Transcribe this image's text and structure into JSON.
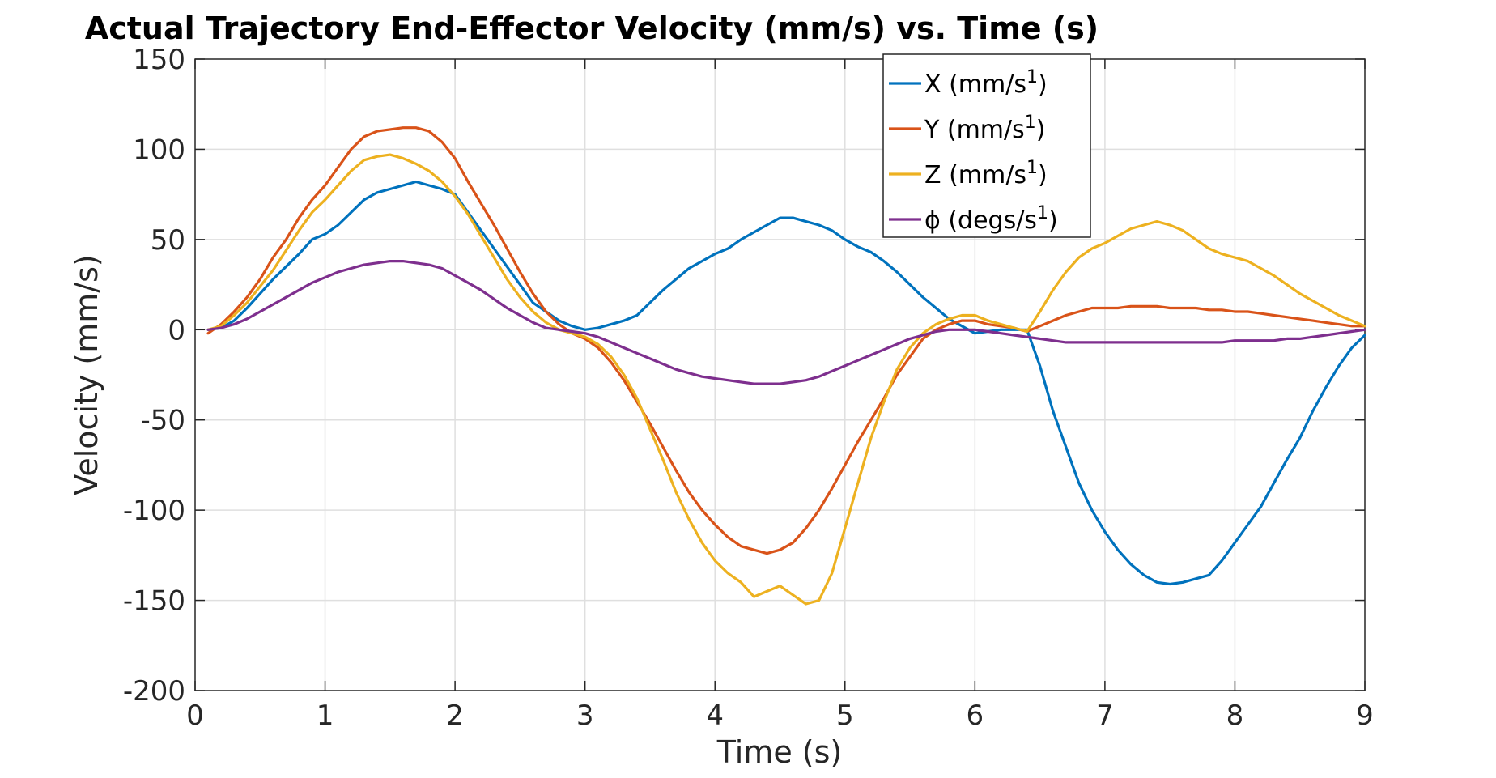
{
  "chart_data": {
    "type": "line",
    "title": "Actual Trajectory End-Effector Velocity (mm/s) vs. Time (s)",
    "xlabel": "Time (s)",
    "ylabel": "Velocity (mm/s)",
    "xlim": [
      0,
      9
    ],
    "ylim": [
      -200,
      150
    ],
    "xticks": [
      0,
      1,
      2,
      3,
      4,
      5,
      6,
      7,
      8,
      9
    ],
    "yticks": [
      -200,
      -150,
      -100,
      -50,
      0,
      50,
      100,
      150
    ],
    "xtick_labels": [
      "0",
      "1",
      "2",
      "3",
      "4",
      "5",
      "6",
      "7",
      "8",
      "9"
    ],
    "ytick_labels": [
      "-200",
      "-150",
      "-100",
      "-50",
      "0",
      "50",
      "100",
      "150"
    ],
    "grid": true,
    "legend_position": "top-center",
    "x": [
      0.1,
      0.2,
      0.3,
      0.4,
      0.5,
      0.6,
      0.7,
      0.8,
      0.9,
      1.0,
      1.1,
      1.2,
      1.3,
      1.4,
      1.5,
      1.6,
      1.7,
      1.8,
      1.9,
      2.0,
      2.1,
      2.2,
      2.3,
      2.4,
      2.5,
      2.6,
      2.7,
      2.8,
      2.9,
      3.0,
      3.1,
      3.2,
      3.3,
      3.4,
      3.5,
      3.6,
      3.7,
      3.8,
      3.9,
      4.0,
      4.1,
      4.2,
      4.3,
      4.4,
      4.5,
      4.6,
      4.7,
      4.8,
      4.9,
      5.0,
      5.1,
      5.2,
      5.3,
      5.4,
      5.5,
      5.6,
      5.7,
      5.8,
      5.9,
      6.0,
      6.1,
      6.2,
      6.3,
      6.4,
      6.5,
      6.6,
      6.7,
      6.8,
      6.9,
      7.0,
      7.1,
      7.2,
      7.3,
      7.4,
      7.5,
      7.6,
      7.7,
      7.8,
      7.9,
      8.0,
      8.1,
      8.2,
      8.3,
      8.4,
      8.5,
      8.6,
      8.7,
      8.8,
      8.9,
      9.0
    ],
    "series": [
      {
        "name": "X (mm/s1)",
        "color": "#0072BD",
        "values": [
          0,
          1,
          5,
          12,
          20,
          28,
          35,
          42,
          50,
          53,
          58,
          65,
          72,
          76,
          78,
          80,
          82,
          80,
          78,
          75,
          65,
          55,
          45,
          35,
          25,
          15,
          10,
          5,
          2,
          0,
          1,
          3,
          5,
          8,
          15,
          22,
          28,
          34,
          38,
          42,
          45,
          50,
          54,
          58,
          62,
          62,
          60,
          58,
          55,
          50,
          46,
          43,
          38,
          32,
          25,
          18,
          12,
          6,
          2,
          -2,
          -1,
          0,
          0,
          0,
          -20,
          -45,
          -65,
          -85,
          -100,
          -112,
          -122,
          -130,
          -136,
          -140,
          -141,
          -140,
          -138,
          -136,
          -128,
          -118,
          -108,
          -98,
          -85,
          -72,
          -60,
          -45,
          -32,
          -20,
          -10,
          -3
        ]
      },
      {
        "name": "Y (mm/s1)",
        "color": "#D95319",
        "values": [
          -2,
          3,
          10,
          18,
          28,
          40,
          50,
          62,
          72,
          80,
          90,
          100,
          107,
          110,
          111,
          112,
          112,
          110,
          104,
          95,
          82,
          70,
          58,
          45,
          32,
          20,
          10,
          3,
          -2,
          -5,
          -10,
          -18,
          -28,
          -40,
          -52,
          -65,
          -78,
          -90,
          -100,
          -108,
          -115,
          -120,
          -122,
          -124,
          -122,
          -118,
          -110,
          -100,
          -88,
          -75,
          -62,
          -50,
          -38,
          -25,
          -15,
          -5,
          0,
          3,
          5,
          5,
          3,
          2,
          1,
          -1,
          2,
          5,
          8,
          10,
          12,
          12,
          12,
          13,
          13,
          13,
          12,
          12,
          12,
          11,
          11,
          10,
          10,
          9,
          8,
          7,
          6,
          5,
          4,
          3,
          2,
          2
        ]
      },
      {
        "name": "Z (mm/s1)",
        "color": "#EDB120",
        "values": [
          0,
          2,
          8,
          15,
          24,
          33,
          44,
          55,
          65,
          72,
          80,
          88,
          94,
          96,
          97,
          95,
          92,
          88,
          82,
          74,
          64,
          52,
          40,
          28,
          18,
          10,
          4,
          0,
          -2,
          -4,
          -8,
          -15,
          -25,
          -38,
          -55,
          -72,
          -90,
          -105,
          -118,
          -128,
          -135,
          -140,
          -148,
          -145,
          -142,
          -147,
          -152,
          -150,
          -135,
          -110,
          -85,
          -60,
          -40,
          -22,
          -10,
          -2,
          3,
          6,
          8,
          8,
          5,
          3,
          1,
          -1,
          10,
          22,
          32,
          40,
          45,
          48,
          52,
          56,
          58,
          60,
          58,
          55,
          50,
          45,
          42,
          40,
          38,
          34,
          30,
          25,
          20,
          16,
          12,
          8,
          5,
          2
        ]
      },
      {
        "name": "ϕ (degs/s1)",
        "color": "#7E2F8E",
        "values": [
          0,
          1,
          3,
          6,
          10,
          14,
          18,
          22,
          26,
          29,
          32,
          34,
          36,
          37,
          38,
          38,
          37,
          36,
          34,
          30,
          26,
          22,
          17,
          12,
          8,
          4,
          1,
          0,
          -1,
          -2,
          -4,
          -7,
          -10,
          -13,
          -16,
          -19,
          -22,
          -24,
          -26,
          -27,
          -28,
          -29,
          -30,
          -30,
          -30,
          -29,
          -28,
          -26,
          -23,
          -20,
          -17,
          -14,
          -11,
          -8,
          -5,
          -3,
          -1,
          0,
          0,
          0,
          -1,
          -2,
          -3,
          -4,
          -5,
          -6,
          -7,
          -7,
          -7,
          -7,
          -7,
          -7,
          -7,
          -7,
          -7,
          -7,
          -7,
          -7,
          -7,
          -6,
          -6,
          -6,
          -6,
          -5,
          -5,
          -4,
          -3,
          -2,
          -1,
          0
        ]
      }
    ]
  },
  "legend": {
    "entries": [
      {
        "base": "X (mm/s",
        "sup": "1",
        "end": ")",
        "color": "#0072BD"
      },
      {
        "base": "Y (mm/s",
        "sup": "1",
        "end": ")",
        "color": "#D95319"
      },
      {
        "base": "Z (mm/s",
        "sup": "1",
        "end": ")",
        "color": "#EDB120"
      },
      {
        "base": "ϕ (degs/s",
        "sup": "1",
        "end": ")",
        "color": "#7E2F8E"
      }
    ]
  }
}
